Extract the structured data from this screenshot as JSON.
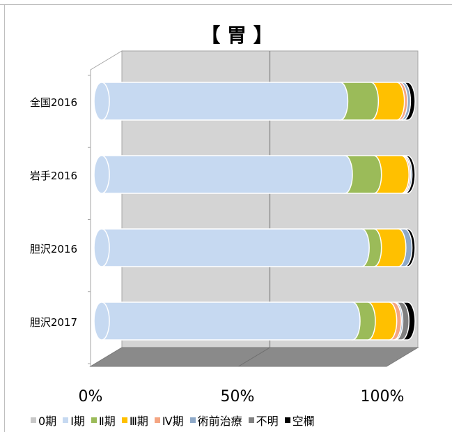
{
  "chart_data": {
    "type": "bar",
    "orientation": "horizontal",
    "stacked": "percent",
    "three_d": true,
    "title": "【 胃 】",
    "categories": [
      "全国2016",
      "岩手2016",
      "胆沢2016",
      "胆沢2017"
    ],
    "series": [
      {
        "name": "0期",
        "color": "#c8c8c8",
        "values": [
          0,
          0,
          0,
          0
        ]
      },
      {
        "name": "Ⅰ期",
        "color": "#c6d9f1",
        "values": [
          78,
          79.5,
          85,
          82
        ]
      },
      {
        "name": "Ⅱ期",
        "color": "#9bbb59",
        "values": [
          10,
          9.5,
          4,
          5
        ]
      },
      {
        "name": "Ⅲ期",
        "color": "#ffc000",
        "values": [
          8.5,
          9,
          8,
          7
        ]
      },
      {
        "name": "Ⅳ期",
        "color": "#f4a582",
        "values": [
          1,
          0.5,
          0,
          1.5
        ]
      },
      {
        "name": "術前治療",
        "color": "#8ea9c8",
        "values": [
          1,
          0.5,
          2,
          0.5
        ]
      },
      {
        "name": "不明",
        "color": "#808080",
        "values": [
          0,
          0,
          0,
          2
        ]
      },
      {
        "name": "空欄",
        "color": "#000000",
        "values": [
          1.5,
          1,
          1,
          2
        ]
      }
    ],
    "x_ticks": [
      "0%",
      "50%",
      "100%"
    ],
    "xlim": [
      0,
      100
    ],
    "legend_position": "bottom",
    "grid": true
  }
}
